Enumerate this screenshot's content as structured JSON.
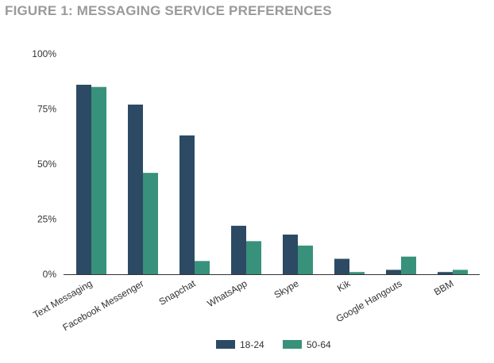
{
  "chart_data": {
    "type": "bar",
    "title": "FIGURE 1: MESSAGING SERVICE PREFERENCES",
    "xlabel": "",
    "ylabel": "",
    "categories": [
      "Text Messaging",
      "Facebook Messenger",
      "Snapchat",
      "WhatsApp",
      "Skype",
      "Kik",
      "Google Hangouts",
      "BBM"
    ],
    "series": [
      {
        "name": "18-24",
        "color": "#2d4a64",
        "values": [
          86,
          77,
          63,
          22,
          18,
          7,
          2,
          1
        ]
      },
      {
        "name": "50-64",
        "color": "#38917b",
        "values": [
          85,
          46,
          6,
          15,
          13,
          1,
          8,
          2
        ]
      }
    ],
    "ylim": [
      0,
      100
    ],
    "yticks": [
      0,
      25,
      50,
      75,
      100
    ],
    "ytick_labels": [
      "0%",
      "25%",
      "50%",
      "75%",
      "100%"
    ],
    "grid": false,
    "legend_position": "bottom-center"
  }
}
